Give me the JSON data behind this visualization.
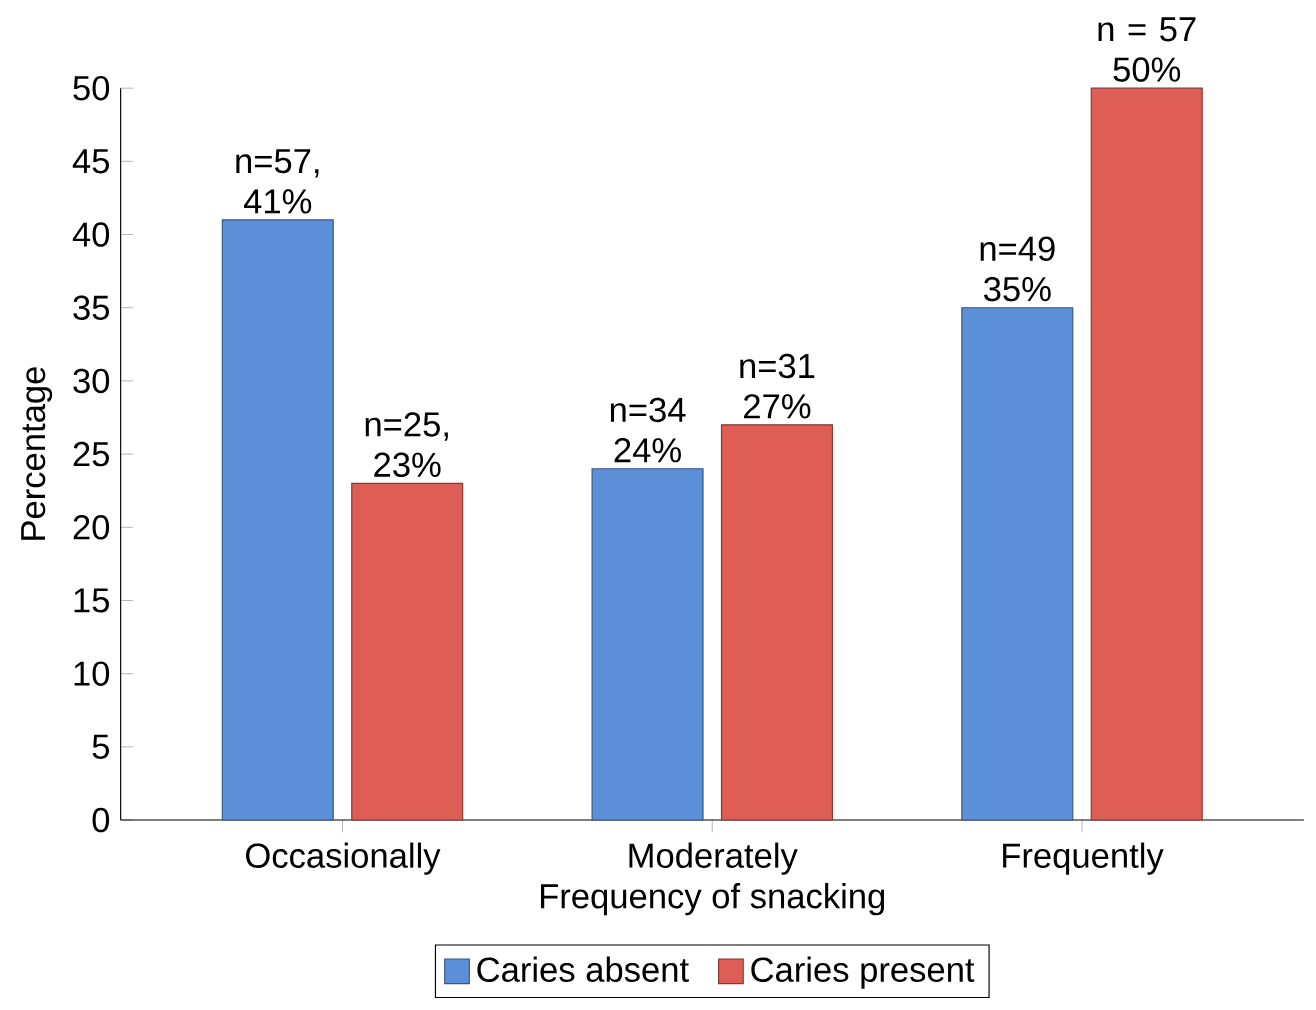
{
  "chart_data": {
    "type": "bar",
    "xlabel": "Frequency of snacking",
    "ylabel": "Percentage",
    "categories": [
      "Occasionally",
      "Moderately",
      "Frequently"
    ],
    "series": [
      {
        "name": "Caries absent",
        "color": "#5b8fd8",
        "values": [
          41,
          24,
          35
        ],
        "value_labels": [
          "n=57, 41%",
          "n=34 24%",
          "n=49 35%"
        ]
      },
      {
        "name": "Caries present",
        "color": "#de5d55",
        "values": [
          23,
          27,
          50
        ],
        "value_labels": [
          "n=25, 23%",
          "n=31 27%",
          "n = 57 50%"
        ]
      }
    ],
    "ylim": [
      0,
      50
    ],
    "yticks": [
      0,
      5,
      10,
      15,
      20,
      25,
      30,
      35,
      40,
      45,
      50
    ],
    "grid": false,
    "legend": "bottom"
  }
}
